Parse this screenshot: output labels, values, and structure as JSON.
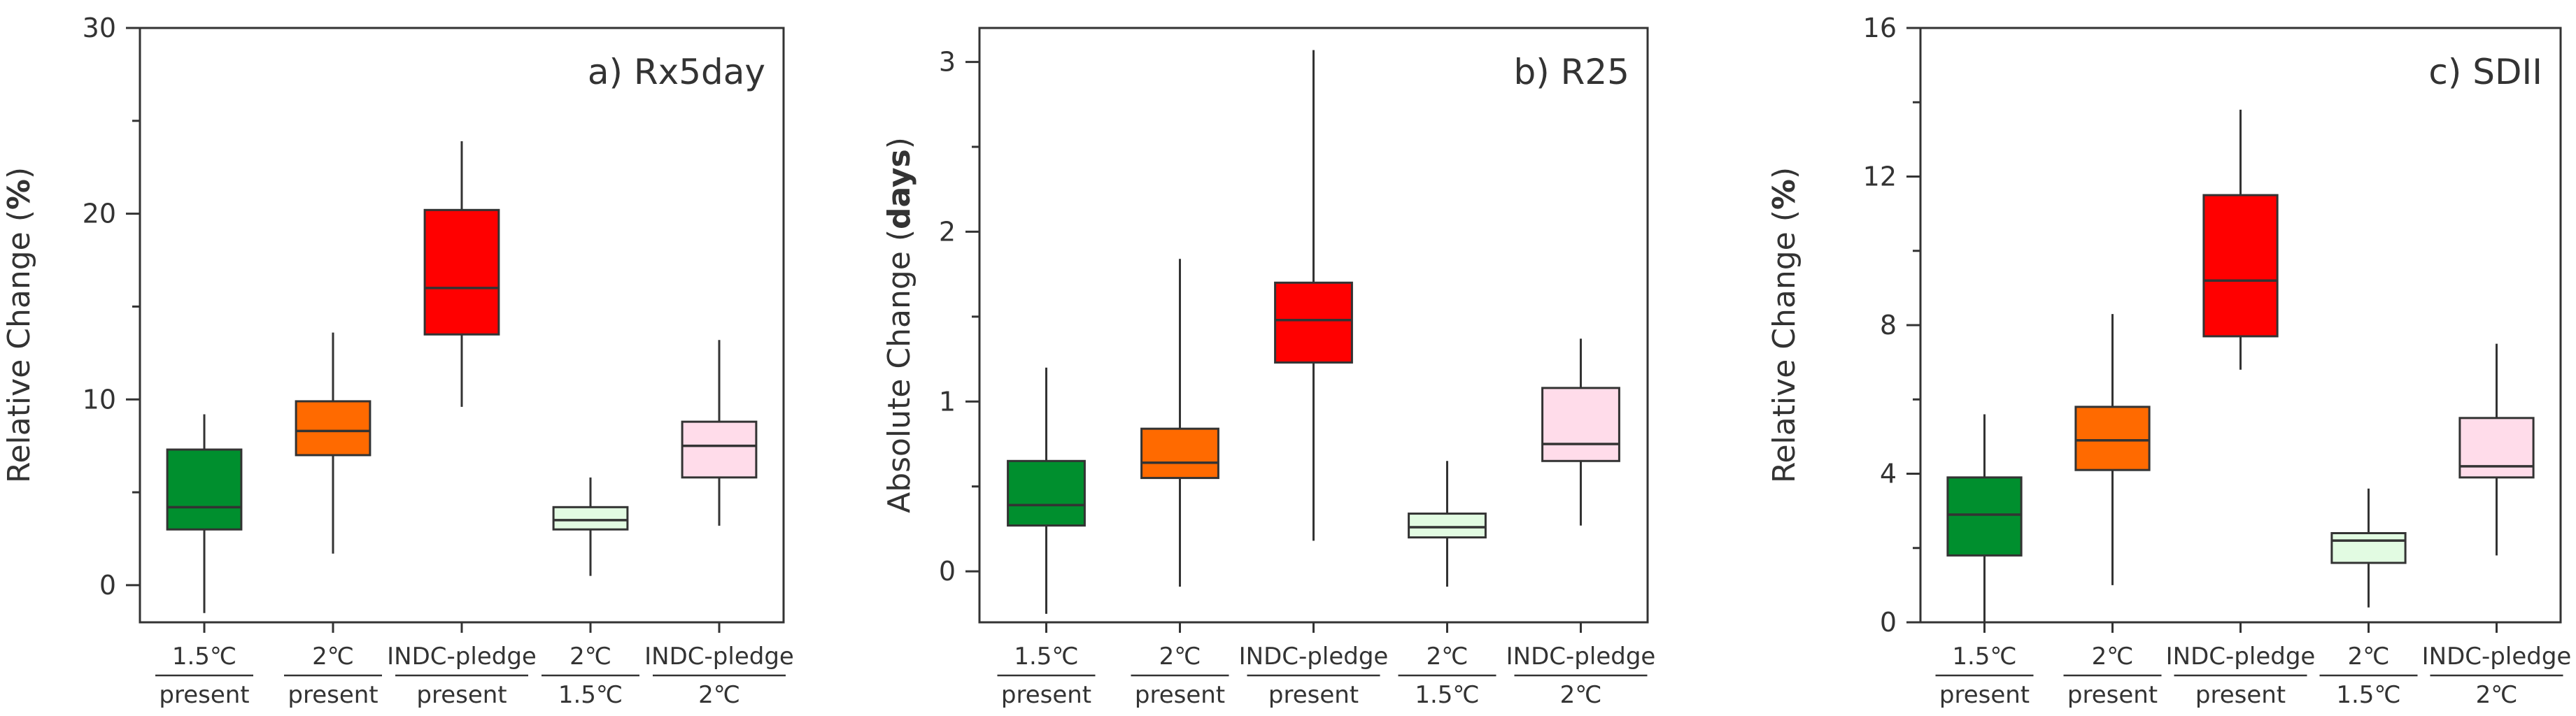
{
  "chart_data": [
    {
      "type": "box",
      "title": "a) Rx5day",
      "ylabel_prefix": "Relative Change (",
      "ylabel_unit": "%",
      "ylabel_suffix": ")",
      "ylim": [
        -2,
        30
      ],
      "yticks": [
        0,
        10,
        20,
        30
      ],
      "categories": [
        {
          "top": "1.5℃",
          "bottom": "present",
          "color": "#008f2e",
          "whisker_low": -1.5,
          "q1": 3.0,
          "median": 4.2,
          "q3": 7.3,
          "whisker_high": 9.2
        },
        {
          "top": "2℃",
          "bottom": "present",
          "color": "#ff6a00",
          "whisker_low": 1.7,
          "q1": 7.0,
          "median": 8.3,
          "q3": 9.9,
          "whisker_high": 13.6
        },
        {
          "top": "INDC-pledge",
          "bottom": "present",
          "color": "#ff0000",
          "whisker_low": 9.6,
          "q1": 13.5,
          "median": 16.0,
          "q3": 20.2,
          "whisker_high": 23.9
        },
        {
          "top": "2℃",
          "bottom": "1.5℃",
          "color": "#e2fbe2",
          "whisker_low": 0.5,
          "q1": 3.0,
          "median": 3.5,
          "q3": 4.2,
          "whisker_high": 5.8
        },
        {
          "top": "INDC-pledge",
          "bottom": "2℃",
          "color": "#ffdcea",
          "whisker_low": 3.2,
          "q1": 5.8,
          "median": 7.5,
          "q3": 8.8,
          "whisker_high": 13.2
        }
      ]
    },
    {
      "type": "box",
      "title": "b) R25",
      "ylabel_prefix": "Absolute Change (",
      "ylabel_unit": "days",
      "ylabel_suffix": ")",
      "ylim": [
        -0.3,
        3.2
      ],
      "yticks": [
        0,
        1,
        2,
        3
      ],
      "categories": [
        {
          "top": "1.5℃",
          "bottom": "present",
          "color": "#008f2e",
          "whisker_low": -0.25,
          "q1": 0.27,
          "median": 0.39,
          "q3": 0.65,
          "whisker_high": 1.2
        },
        {
          "top": "2℃",
          "bottom": "present",
          "color": "#ff6a00",
          "whisker_low": -0.09,
          "q1": 0.55,
          "median": 0.64,
          "q3": 0.84,
          "whisker_high": 1.84
        },
        {
          "top": "INDC-pledge",
          "bottom": "present",
          "color": "#ff0000",
          "whisker_low": 0.18,
          "q1": 1.23,
          "median": 1.48,
          "q3": 1.7,
          "whisker_high": 3.07
        },
        {
          "top": "2℃",
          "bottom": "1.5℃",
          "color": "#e2fbe2",
          "whisker_low": -0.09,
          "q1": 0.2,
          "median": 0.26,
          "q3": 0.34,
          "whisker_high": 0.65
        },
        {
          "top": "INDC-pledge",
          "bottom": "2℃",
          "color": "#ffdcea",
          "whisker_low": 0.27,
          "q1": 0.65,
          "median": 0.75,
          "q3": 1.08,
          "whisker_high": 1.37
        }
      ]
    },
    {
      "type": "box",
      "title": "c) SDII",
      "ylabel_prefix": "Relative Change (",
      "ylabel_unit": "%",
      "ylabel_suffix": ")",
      "ylim": [
        0,
        16
      ],
      "yticks": [
        0,
        4,
        8,
        12,
        16
      ],
      "categories": [
        {
          "top": "1.5℃",
          "bottom": "present",
          "color": "#008f2e",
          "whisker_low": 0.0,
          "q1": 1.8,
          "median": 2.9,
          "q3": 3.9,
          "whisker_high": 5.6
        },
        {
          "top": "2℃",
          "bottom": "present",
          "color": "#ff6a00",
          "whisker_low": 1.0,
          "q1": 4.1,
          "median": 4.9,
          "q3": 5.8,
          "whisker_high": 8.3
        },
        {
          "top": "INDC-pledge",
          "bottom": "present",
          "color": "#ff0000",
          "whisker_low": 6.8,
          "q1": 7.7,
          "median": 9.2,
          "q3": 11.5,
          "whisker_high": 13.8
        },
        {
          "top": "2℃",
          "bottom": "1.5℃",
          "color": "#e2fbe2",
          "whisker_low": 0.4,
          "q1": 1.6,
          "median": 2.2,
          "q3": 2.4,
          "whisker_high": 3.6
        },
        {
          "top": "INDC-pledge",
          "bottom": "2℃",
          "color": "#ffdcea",
          "whisker_low": 1.8,
          "q1": 3.9,
          "median": 4.2,
          "q3": 5.5,
          "whisker_high": 7.5
        }
      ]
    }
  ]
}
